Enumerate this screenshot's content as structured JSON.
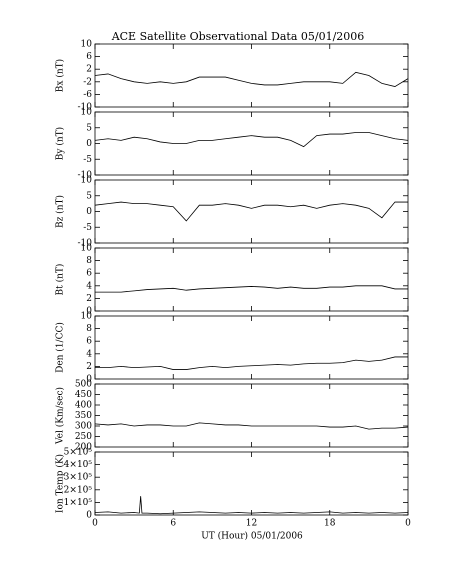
{
  "chart_data": [
    {
      "type": "line",
      "title": "ACE Satellite Observational Data   05/01/2006",
      "ylabel": "Bx (nT)",
      "x": [
        0,
        1,
        2,
        3,
        4,
        5,
        6,
        7,
        8,
        9,
        10,
        11,
        12,
        13,
        14,
        15,
        16,
        17,
        18,
        19,
        20,
        21,
        22,
        23,
        24
      ],
      "values": [
        0,
        0.5,
        -1,
        -2,
        -2.5,
        -2,
        -2.5,
        -2,
        -0.5,
        -0.5,
        -0.5,
        -1.5,
        -2.5,
        -3,
        -3,
        -2.5,
        -2,
        -2,
        -2,
        -2.5,
        1,
        0,
        -2.5,
        -3.5,
        -1
      ],
      "ylim": [
        -10,
        10
      ],
      "yticks": [
        -10,
        -6,
        -2,
        2,
        6,
        10
      ],
      "color": "#000000"
    },
    {
      "type": "line",
      "ylabel": "By (nT)",
      "x": [
        0,
        1,
        2,
        3,
        4,
        5,
        6,
        7,
        8,
        9,
        10,
        11,
        12,
        13,
        14,
        15,
        16,
        17,
        18,
        19,
        20,
        21,
        22,
        23,
        24
      ],
      "values": [
        1,
        1.5,
        1,
        2,
        1.5,
        0.5,
        0,
        0,
        1,
        1,
        1.5,
        2,
        2.5,
        2,
        2,
        1,
        -1,
        2.5,
        3,
        3,
        3.5,
        3.5,
        2.5,
        1.5,
        1
      ],
      "ylim": [
        -10,
        10
      ],
      "yticks": [
        -10,
        -5,
        0,
        5,
        10
      ],
      "color": "#000000"
    },
    {
      "type": "line",
      "ylabel": "Bz (nT)",
      "x": [
        0,
        1,
        2,
        3,
        4,
        5,
        6,
        7,
        8,
        9,
        10,
        11,
        12,
        13,
        14,
        15,
        16,
        17,
        18,
        19,
        20,
        21,
        22,
        23,
        24
      ],
      "values": [
        2,
        2.5,
        3,
        2.5,
        2.5,
        2,
        1.5,
        -3,
        2,
        2,
        2.5,
        2,
        1,
        2,
        2,
        1.5,
        2,
        1,
        2,
        2.5,
        2,
        1,
        -2,
        3,
        3
      ],
      "ylim": [
        -10,
        10
      ],
      "yticks": [
        -10,
        -5,
        0,
        5,
        10
      ],
      "color": "#000000"
    },
    {
      "type": "line",
      "ylabel": "Bt (nT)",
      "x": [
        0,
        1,
        2,
        3,
        4,
        5,
        6,
        7,
        8,
        9,
        10,
        11,
        12,
        13,
        14,
        15,
        16,
        17,
        18,
        19,
        20,
        21,
        22,
        23,
        24
      ],
      "values": [
        3,
        3,
        3,
        3.2,
        3.4,
        3.5,
        3.6,
        3.3,
        3.5,
        3.6,
        3.7,
        3.8,
        3.9,
        3.8,
        3.6,
        3.8,
        3.6,
        3.6,
        3.8,
        3.8,
        4,
        4,
        4,
        3.5,
        3.5
      ],
      "ylim": [
        0,
        10
      ],
      "yticks": [
        0,
        2,
        4,
        6,
        8,
        10
      ],
      "color": "#000000"
    },
    {
      "type": "line",
      "ylabel": "Den (1/CC)",
      "x": [
        0,
        1,
        2,
        3,
        4,
        5,
        6,
        7,
        8,
        9,
        10,
        11,
        12,
        13,
        14,
        15,
        16,
        17,
        18,
        19,
        20,
        21,
        22,
        23,
        24
      ],
      "values": [
        1.8,
        1.8,
        2,
        1.8,
        1.9,
        2,
        1.5,
        1.5,
        1.8,
        2,
        1.8,
        2,
        2.1,
        2.2,
        2.3,
        2.2,
        2.4,
        2.5,
        2.5,
        2.6,
        3,
        2.8,
        3,
        3.5,
        3.5
      ],
      "ylim": [
        0,
        10
      ],
      "yticks": [
        0,
        2,
        4,
        6,
        8,
        10
      ],
      "color": "#000000"
    },
    {
      "type": "line",
      "ylabel": "Vel (Km/sec)",
      "x": [
        0,
        1,
        2,
        3,
        4,
        5,
        6,
        7,
        8,
        9,
        10,
        11,
        12,
        13,
        14,
        15,
        16,
        17,
        18,
        19,
        20,
        21,
        22,
        23,
        24
      ],
      "values": [
        310,
        305,
        310,
        300,
        305,
        305,
        300,
        300,
        315,
        310,
        305,
        305,
        300,
        300,
        300,
        300,
        300,
        300,
        295,
        295,
        300,
        285,
        290,
        290,
        295
      ],
      "ylim": [
        200,
        500
      ],
      "yticks": [
        200,
        250,
        300,
        350,
        400,
        450,
        500
      ],
      "color": "#000000"
    },
    {
      "type": "line",
      "ylabel": "Ion Temp (K)",
      "xlabel": "UT (Hour)  05/01/2006",
      "x": [
        0,
        1,
        2,
        3,
        3.4,
        3.5,
        3.6,
        4,
        5,
        6,
        7,
        8,
        9,
        10,
        11,
        12,
        13,
        14,
        15,
        16,
        17,
        18,
        19,
        20,
        21,
        22,
        23,
        24
      ],
      "values": [
        20000,
        25000,
        15000,
        20000,
        15000,
        150000,
        15000,
        15000,
        10000,
        15000,
        20000,
        25000,
        20000,
        15000,
        20000,
        15000,
        20000,
        15000,
        20000,
        15000,
        20000,
        25000,
        15000,
        20000,
        15000,
        20000,
        15000,
        20000
      ],
      "ylim": [
        0,
        500000
      ],
      "yticks": [
        0,
        {
          "value": 100000,
          "label": "1×10⁵"
        },
        {
          "value": 200000,
          "label": "2×10⁵"
        },
        {
          "value": 300000,
          "label": "3×10⁵"
        },
        {
          "value": 400000,
          "label": "4×10⁵"
        },
        {
          "value": 500000,
          "label": "5×10⁵"
        }
      ],
      "xlim": [
        0,
        24
      ],
      "xticks": [
        0,
        6,
        12,
        18,
        {
          "value": 24,
          "label": "0"
        }
      ],
      "color": "#000000"
    }
  ]
}
